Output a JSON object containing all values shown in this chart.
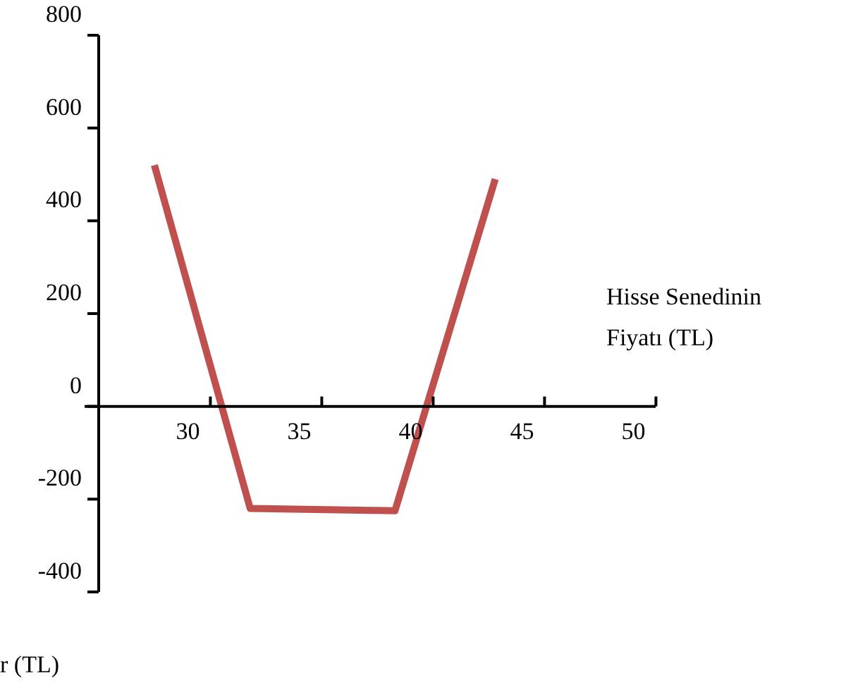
{
  "chart_data": {
    "type": "line",
    "xlabel": "Hisse Senedinin Fiyatı (TL)",
    "ylabel": "r (TL)",
    "series": [
      {
        "color": "#c0504d",
        "x": [
          28.5,
          32.8,
          39.3,
          43.8
        ],
        "values": [
          520,
          -220,
          -225,
          490
        ]
      }
    ],
    "xlim": [
      26,
      51
    ],
    "xticks": [
      30,
      35,
      40,
      45,
      50
    ],
    "ylim": [
      -400,
      800
    ],
    "yticks": [
      -400,
      -200,
      0,
      200,
      400,
      600,
      800
    ],
    "grid": false,
    "legend": false,
    "marker": "none",
    "line_style": "solid"
  }
}
